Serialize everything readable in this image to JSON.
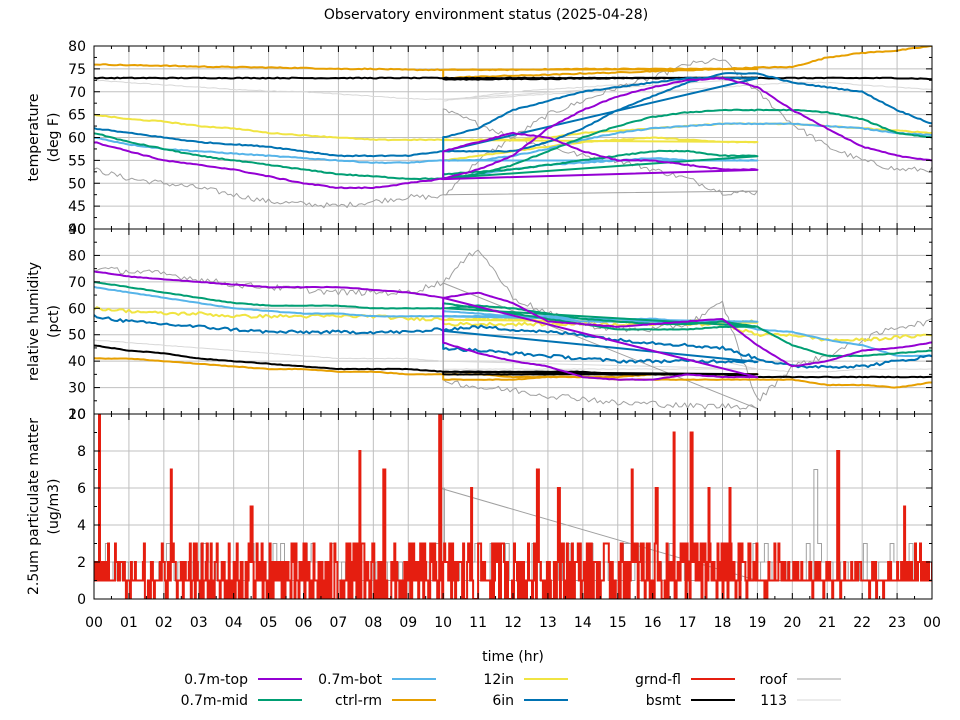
{
  "chart_data": {
    "type": "line",
    "title": "Observatory environment status (2025-04-28)",
    "xlabel": "time (hr)",
    "x_ticks": [
      "00",
      "01",
      "02",
      "03",
      "04",
      "05",
      "06",
      "07",
      "08",
      "09",
      "10",
      "11",
      "12",
      "13",
      "14",
      "15",
      "16",
      "17",
      "18",
      "19",
      "20",
      "21",
      "22",
      "23",
      "00"
    ],
    "xlim": [
      0,
      24
    ],
    "grid": true,
    "legend_position": "bottom",
    "legend": [
      {
        "name": "0.7m-top",
        "color": "#9400d3"
      },
      {
        "name": "0.7m-mid",
        "color": "#009e73"
      },
      {
        "name": "0.7m-bot",
        "color": "#56b4e9"
      },
      {
        "name": "ctrl-rm",
        "color": "#e69f00"
      },
      {
        "name": "12in",
        "color": "#f0e442"
      },
      {
        "name": "6in",
        "color": "#0072b2"
      },
      {
        "name": "grnd-fl",
        "color": "#e51e10"
      },
      {
        "name": "bsmt",
        "color": "#000000"
      },
      {
        "name": "roof",
        "color": "#a0a0a0"
      },
      {
        "name": "113",
        "color": "#d8d8d8"
      }
    ],
    "panels": [
      {
        "name": "temperature",
        "ylabel": "temperature\n(deg F)",
        "ylabel_lines": [
          "temperature",
          "(deg F)"
        ],
        "ylim": [
          40,
          80
        ],
        "y_ticks": [
          40,
          45,
          50,
          55,
          60,
          65,
          70,
          75,
          80
        ],
        "note": "hourly samples 0..24; a second segment from 10 to 19 hr (prior-day data) overlaps",
        "series": [
          {
            "name": "0.7m-top",
            "values": [
              59,
              57,
              55,
              54,
              53,
              51.5,
              50,
              49,
              49,
              50,
              51,
              53,
              56,
              62,
              66,
              69,
              71,
              72.5,
              73,
              71,
              66,
              62,
              58,
              56,
              55
            ],
            "overlay": [
              57,
              59,
              61,
              60,
              57,
              55,
              55,
              54,
              53
            ]
          },
          {
            "name": "0.7m-mid",
            "values": [
              61,
              59,
              57.5,
              56,
              55,
              54,
              53,
              52,
              51.5,
              51,
              51,
              52,
              54,
              57,
              60,
              62.5,
              64.5,
              65.5,
              66,
              66,
              66,
              65.5,
              64,
              61,
              60
            ],
            "overlay": [
              52,
              52.5,
              53,
              54,
              55,
              56,
              57,
              57,
              56
            ]
          },
          {
            "name": "0.7m-bot",
            "values": [
              60,
              58.5,
              57.5,
              57,
              56.5,
              56,
              55.5,
              55,
              54.5,
              54.5,
              55,
              55,
              56,
              57.5,
              59.5,
              61,
              62,
              62.5,
              63,
              63,
              63,
              62.5,
              62,
              61,
              60.5
            ],
            "overlay": [
              51,
              52,
              53,
              54,
              54.5,
              55,
              55.5,
              55,
              55
            ]
          },
          {
            "name": "ctrl-rm",
            "values": [
              76,
              75.8,
              75.7,
              75.5,
              75.4,
              75.3,
              75.2,
              75,
              75,
              74.8,
              74.8,
              74.8,
              74.8,
              74.9,
              75,
              75,
              75,
              75,
              75,
              75.3,
              75.4,
              77.5,
              78.5,
              79,
              80
            ],
            "overlay": [
              73,
              73.3,
              73.5,
              73.7,
              74,
              74.2,
              74.5,
              74.7,
              75
            ]
          },
          {
            "name": "12in",
            "values": [
              65,
              64,
              63.5,
              62.5,
              62,
              61,
              60.5,
              60,
              59.5,
              59.5,
              59.5,
              59.5,
              59.5,
              60,
              61,
              61.5,
              62,
              62.5,
              63,
              63,
              63,
              62.5,
              62,
              61.5,
              61
            ],
            "overlay": [
              55,
              56,
              57,
              58,
              59,
              59.5,
              60,
              59.5,
              59
            ]
          },
          {
            "name": "6in",
            "values": [
              62,
              61,
              60,
              59,
              58.5,
              58,
              57,
              56,
              56,
              56,
              57,
              57,
              57,
              59,
              62,
              66,
              69,
              72,
              74,
              74,
              72,
              71,
              70,
              66,
              63
            ],
            "overlay": [
              60,
              62,
              66,
              68,
              70,
              71,
              72,
              73,
              73
            ]
          },
          {
            "name": "bsmt",
            "values": [
              73,
              73,
              73,
              73,
              73,
              73,
              73,
              73,
              73,
              73,
              73,
              73,
              73,
              73,
              73,
              73,
              73,
              73,
              73,
              73,
              73,
              73,
              73,
              73,
              72.8
            ],
            "overlay": [
              72.7,
              72.7,
              72.8,
              72.8,
              72.9,
              73,
              73,
              73,
              73
            ]
          },
          {
            "name": "roof",
            "values": [
              53,
              51,
              50,
              49,
              47.5,
              46,
              45.5,
              45,
              46,
              47,
              47,
              55,
              60,
              65,
              68,
              71,
              73,
              76,
              77,
              70,
              63,
              58,
              55,
              53,
              53
            ],
            "overlay": [
              66,
              63,
              60,
              58,
              56,
              55,
              53,
              51,
              48
            ]
          },
          {
            "name": "113",
            "values": [
              72.5,
              72,
              71.5,
              71,
              70.5,
              70.2,
              70,
              69.5,
              69,
              68.5,
              68.3,
              68.5,
              69,
              69.5,
              70,
              70,
              70,
              70.5,
              71,
              71.5,
              72,
              72,
              71.5,
              71,
              70.5
            ],
            "overlay": [
              68,
              69,
              70,
              70.5,
              71,
              71.5,
              72,
              72.5,
              73
            ]
          }
        ]
      },
      {
        "name": "relative humidity",
        "ylabel": "relative humidity\n(pct)",
        "ylabel_lines": [
          "relative humidity",
          "(pct)"
        ],
        "ylim": [
          20,
          90
        ],
        "y_ticks": [
          20,
          30,
          40,
          50,
          60,
          70,
          80,
          90
        ],
        "series": [
          {
            "name": "0.7m-top",
            "values": [
              74,
              72,
              71,
              70,
              69,
              68,
              68,
              68,
              67,
              66,
              64,
              66,
              62,
              55,
              54,
              53,
              54,
              55,
              56,
              46,
              38,
              40,
              44,
              45,
              47
            ],
            "overlay": [
              47,
              43,
              40,
              38,
              34,
              33,
              33,
              35,
              34
            ]
          },
          {
            "name": "0.7m-mid",
            "values": [
              70,
              68,
              66,
              64,
              62,
              61,
              61,
              61,
              60,
              60,
              60,
              61,
              60,
              58,
              56,
              55,
              54,
              54,
              55,
              53,
              46,
              42,
              42,
              43,
              44
            ],
            "overlay": [
              62,
              60,
              58,
              56,
              54,
              52,
              52,
              52,
              53
            ]
          },
          {
            "name": "0.7m-bot",
            "values": [
              68,
              66,
              64,
              62,
              60,
              59,
              58,
              58,
              57,
              57,
              57,
              57,
              57,
              57,
              56,
              56,
              56,
              55,
              55,
              52,
              51,
              48,
              46,
              42,
              42
            ],
            "overlay": [
              59,
              58,
              57,
              56,
              55,
              55,
              55,
              54,
              55
            ]
          },
          {
            "name": "ctrl-rm",
            "values": [
              41,
              41,
              40,
              39,
              38,
              37,
              37,
              36,
              36,
              35,
              35,
              35,
              34,
              34,
              34,
              33,
              33,
              33,
              33,
              33,
              33,
              31,
              31,
              30,
              32
            ],
            "overlay": [
              33,
              33,
              33,
              34,
              34,
              34,
              35,
              35,
              35
            ]
          },
          {
            "name": "12in",
            "values": [
              60,
              59,
              58,
              58,
              57,
              57,
              57,
              57,
              57,
              56,
              56,
              56,
              56,
              55,
              55,
              55,
              55,
              54,
              54,
              50,
              50,
              48,
              48,
              49,
              50
            ],
            "overlay": [
              54,
              54,
              54,
              54,
              54,
              54,
              54,
              55,
              55
            ]
          },
          {
            "name": "6in",
            "values": [
              57,
              55,
              54,
              53,
              52,
              51,
              51,
              51,
              51,
              51,
              52,
              53,
              52,
              51,
              50,
              48,
              47,
              46,
              45,
              41,
              38,
              38,
              38,
              40,
              42
            ],
            "overlay": [
              45,
              44,
              43,
              42,
              41,
              40,
              40,
              40,
              40
            ]
          },
          {
            "name": "bsmt",
            "values": [
              46,
              44,
              43,
              41,
              40,
              39,
              38,
              37,
              37,
              37,
              36,
              36,
              36,
              36,
              36,
              35,
              35,
              35,
              35,
              34,
              34,
              34,
              34,
              34,
              34
            ],
            "overlay": [
              35,
              35,
              35,
              35,
              35,
              35,
              35,
              35,
              35
            ]
          },
          {
            "name": "roof",
            "values": [
              75,
              74,
              73,
              71,
              69,
              68,
              67,
              66,
              66,
              66,
              70,
              83,
              64,
              58,
              54,
              52,
              52,
              54,
              62,
              25,
              38,
              42,
              48,
              53,
              55
            ],
            "overlay": [
              33,
              30,
              29,
              27,
              26,
              24,
              24,
              23,
              23
            ]
          },
          {
            "name": "113",
            "values": [
              48,
              47,
              46,
              45,
              44,
              43,
              42,
              41,
              41,
              41,
              40,
              40,
              40,
              40,
              40,
              40,
              40,
              40,
              40,
              37,
              36,
              36,
              37,
              37,
              37
            ],
            "overlay": [
              37,
              37,
              37,
              37,
              37,
              37,
              37,
              37,
              37
            ]
          }
        ]
      },
      {
        "name": "particulate",
        "ylabel": "2.5um particulate matter\n(ug/m3)",
        "ylabel_lines": [
          "2.5um particulate matter",
          "(ug/m3)"
        ],
        "ylim": [
          0,
          10
        ],
        "y_ticks": [
          0,
          2,
          4,
          6,
          8,
          10
        ],
        "series": [
          {
            "name": "grnd-fl",
            "description": "noisy series mostly 0-3 ug/m3 with spikes",
            "typical_range": [
              0,
              3
            ],
            "spikes": [
              [
                0.15,
                10
              ],
              [
                2.2,
                7
              ],
              [
                4.5,
                5
              ],
              [
                7.6,
                8
              ],
              [
                8.3,
                7
              ],
              [
                9.9,
                10
              ],
              [
                10.8,
                6
              ],
              [
                12.7,
                7
              ],
              [
                13.3,
                6
              ],
              [
                15.4,
                7
              ],
              [
                16.1,
                6
              ],
              [
                16.6,
                9
              ],
              [
                17.1,
                9
              ],
              [
                17.6,
                6
              ],
              [
                18.2,
                6
              ],
              [
                21.3,
                8
              ],
              [
                23.2,
                5
              ]
            ]
          },
          {
            "name": "roof",
            "description": "step series between 1 and 3 ug/m3",
            "typical_range": [
              1,
              3
            ],
            "spikes": [
              [
                3.2,
                3
              ],
              [
                9.9,
                6
              ],
              [
                20.6,
                7
              ]
            ]
          }
        ]
      }
    ]
  }
}
